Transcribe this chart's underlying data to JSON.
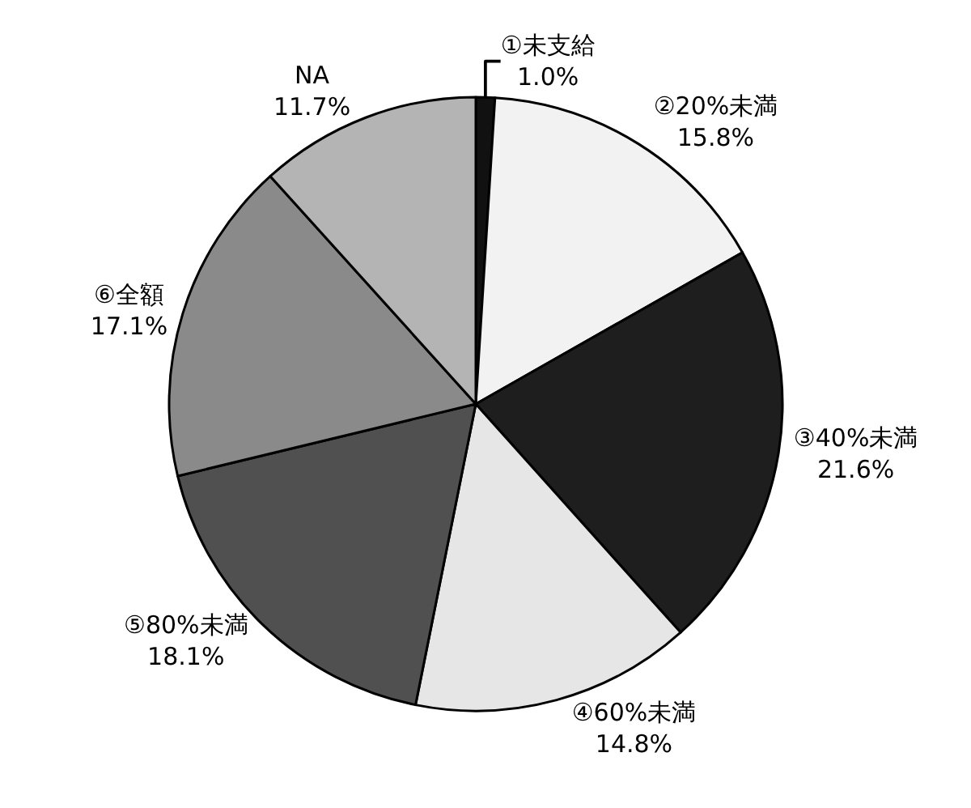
{
  "chart_data": {
    "type": "pie",
    "categories": [
      "①未支給",
      "②20%未満",
      "③40%未満",
      "④60%未満",
      "⑤80%未満",
      "⑥全額",
      "NA"
    ],
    "values": [
      1.0,
      15.8,
      21.6,
      14.8,
      18.1,
      17.1,
      11.7
    ],
    "value_labels": [
      "1.0%",
      "15.8%",
      "21.6%",
      "14.8%",
      "18.1%",
      "17.1%",
      "11.7%"
    ],
    "colors": [
      "#111111",
      "#f2f2f2",
      "#1e1e1e",
      "#e6e6e6",
      "#505050",
      "#8a8a8a",
      "#b4b4b4"
    ],
    "legend": false
  }
}
